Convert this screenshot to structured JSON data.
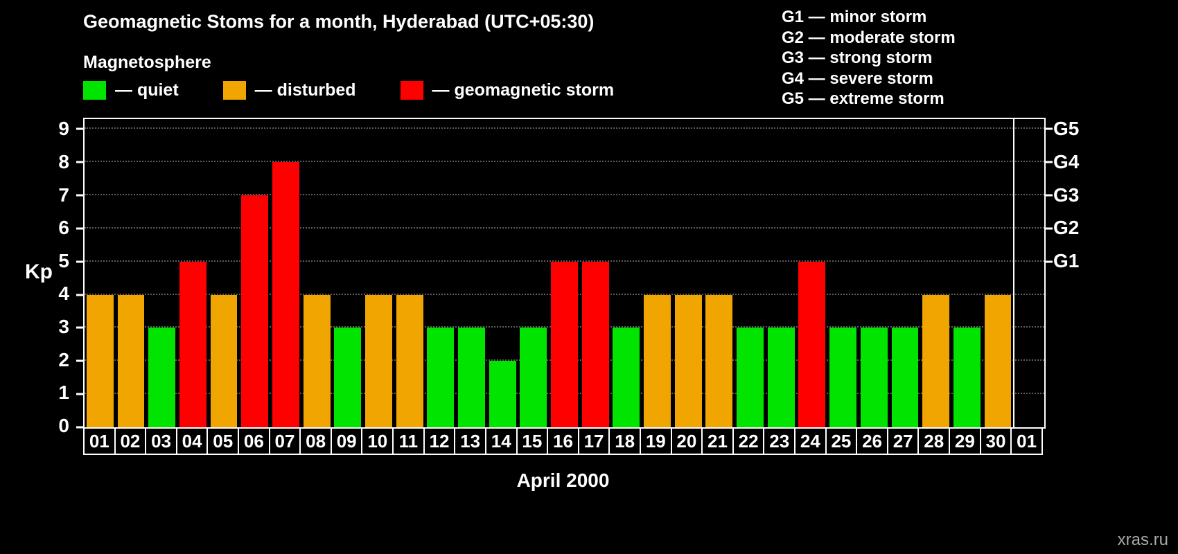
{
  "header": {
    "title": "Geomagnetic Stoms for a month, Hyderabad (UTC+05:30)"
  },
  "legend": {
    "heading": "Magnetosphere",
    "items": [
      {
        "name": "quiet",
        "label": "— quiet",
        "color": "#00e400"
      },
      {
        "name": "disturbed",
        "label": "— disturbed",
        "color": "#f0a500"
      },
      {
        "name": "storm",
        "label": "— geomagnetic storm",
        "color": "#fe0000"
      }
    ]
  },
  "storm_scale": {
    "items": [
      "G1 — minor storm",
      "G2 — moderate storm",
      "G3 — strong storm",
      "G4 — severe storm",
      "G5 — extreme storm"
    ]
  },
  "chart_data": {
    "type": "bar",
    "title": "Geomagnetic Stoms for a month, Hyderabad (UTC+05:30)",
    "xlabel": "April 2000",
    "ylabel": "Kp",
    "ylim": [
      0,
      9
    ],
    "scale_max": 9.3,
    "grid": "dotted-horizontal",
    "gridlines": [
      1,
      2,
      3,
      4,
      5,
      6,
      7,
      8,
      9
    ],
    "y_ticks": [
      0,
      1,
      2,
      3,
      4,
      5,
      6,
      7,
      8,
      9
    ],
    "right_axis": {
      "labels": [
        {
          "label": "G1",
          "kp": 5
        },
        {
          "label": "G2",
          "kp": 6
        },
        {
          "label": "G3",
          "kp": 7
        },
        {
          "label": "G4",
          "kp": 8
        },
        {
          "label": "G5",
          "kp": 9
        }
      ]
    },
    "status_colors": {
      "quiet": "#00e400",
      "disturbed": "#f0a500",
      "storm": "#fe0000"
    },
    "bars": [
      {
        "day": "01",
        "kp": 4,
        "status": "disturbed"
      },
      {
        "day": "02",
        "kp": 4,
        "status": "disturbed"
      },
      {
        "day": "03",
        "kp": 3,
        "status": "quiet"
      },
      {
        "day": "04",
        "kp": 5,
        "status": "storm"
      },
      {
        "day": "05",
        "kp": 4,
        "status": "disturbed"
      },
      {
        "day": "06",
        "kp": 7,
        "status": "storm"
      },
      {
        "day": "07",
        "kp": 8,
        "status": "storm"
      },
      {
        "day": "08",
        "kp": 4,
        "status": "disturbed"
      },
      {
        "day": "09",
        "kp": 3,
        "status": "quiet"
      },
      {
        "day": "10",
        "kp": 4,
        "status": "disturbed"
      },
      {
        "day": "11",
        "kp": 4,
        "status": "disturbed"
      },
      {
        "day": "12",
        "kp": 3,
        "status": "quiet"
      },
      {
        "day": "13",
        "kp": 3,
        "status": "quiet"
      },
      {
        "day": "14",
        "kp": 2,
        "status": "quiet"
      },
      {
        "day": "15",
        "kp": 3,
        "status": "quiet"
      },
      {
        "day": "16",
        "kp": 5,
        "status": "storm"
      },
      {
        "day": "17",
        "kp": 5,
        "status": "storm"
      },
      {
        "day": "18",
        "kp": 3,
        "status": "quiet"
      },
      {
        "day": "19",
        "kp": 4,
        "status": "disturbed"
      },
      {
        "day": "20",
        "kp": 4,
        "status": "disturbed"
      },
      {
        "day": "21",
        "kp": 4,
        "status": "disturbed"
      },
      {
        "day": "22",
        "kp": 3,
        "status": "quiet"
      },
      {
        "day": "23",
        "kp": 3,
        "status": "quiet"
      },
      {
        "day": "24",
        "kp": 5,
        "status": "storm"
      },
      {
        "day": "25",
        "kp": 3,
        "status": "quiet"
      },
      {
        "day": "26",
        "kp": 3,
        "status": "quiet"
      },
      {
        "day": "27",
        "kp": 3,
        "status": "quiet"
      },
      {
        "day": "28",
        "kp": 4,
        "status": "disturbed"
      },
      {
        "day": "29",
        "kp": 3,
        "status": "quiet"
      },
      {
        "day": "30",
        "kp": 4,
        "status": "disturbed"
      },
      {
        "day": "01",
        "kp": null,
        "status": null
      }
    ],
    "legend_position": "top-left"
  },
  "footer": {
    "watermark": "xras.ru"
  }
}
